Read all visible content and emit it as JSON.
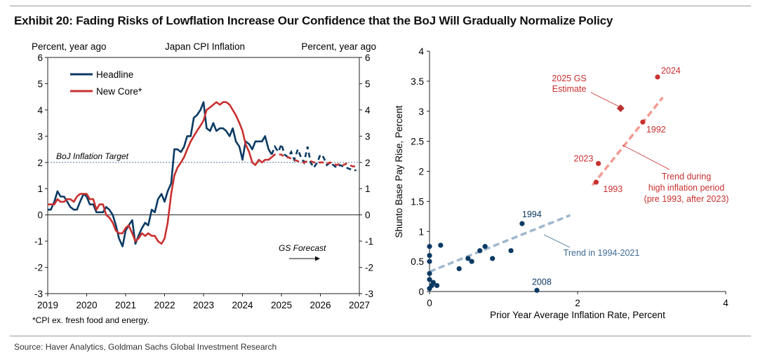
{
  "exhibit": {
    "title": "Exhibit 20: Fading Risks of Lowflation Increase Our Confidence that the BoJ Will Gradually Normalize Policy",
    "source": "Source: Haver Analytics, Goldman Sachs Global Investment Research"
  },
  "colors": {
    "headline": "#0b3a63",
    "core": "#c8302f",
    "trend_early": "#9fb7cc",
    "trend_high": "#f29a93",
    "scatter_blue": "#0b3a63",
    "scatter_red": "#c8302f"
  },
  "chart_data": [
    {
      "type": "line",
      "title": "Japan CPI Inflation",
      "ylabel_left": "Percent, year ago",
      "ylabel_right": "Percent, year ago",
      "ylim": [
        -3,
        6
      ],
      "xlim": [
        2019,
        2027
      ],
      "x_ticks": [
        "2019",
        "2020",
        "2021",
        "2022",
        "2023",
        "2024",
        "2025",
        "2026",
        "2027"
      ],
      "y_ticks": [
        "-3",
        "-2",
        "-1",
        "0",
        "1",
        "2",
        "3",
        "4",
        "5",
        "6"
      ],
      "footnote": "*CPI ex. fresh food and energy.",
      "reference_line": {
        "label": "BoJ Inflation Target",
        "y": 2
      },
      "forecast_note": {
        "label": "GS Forecast",
        "start": 2024.75
      },
      "legend": [
        "Headline",
        "New Core*"
      ],
      "series": [
        {
          "name": "Headline",
          "points": [
            [
              2019.0,
              0.2
            ],
            [
              2019.08,
              0.2
            ],
            [
              2019.17,
              0.5
            ],
            [
              2019.25,
              0.9
            ],
            [
              2019.33,
              0.7
            ],
            [
              2019.42,
              0.7
            ],
            [
              2019.5,
              0.5
            ],
            [
              2019.58,
              0.3
            ],
            [
              2019.67,
              0.2
            ],
            [
              2019.75,
              0.2
            ],
            [
              2019.83,
              0.5
            ],
            [
              2019.92,
              0.8
            ],
            [
              2020.0,
              0.7
            ],
            [
              2020.08,
              0.4
            ],
            [
              2020.17,
              0.4
            ],
            [
              2020.25,
              0.1
            ],
            [
              2020.33,
              0.1
            ],
            [
              2020.42,
              0.1
            ],
            [
              2020.5,
              0.3
            ],
            [
              2020.58,
              0.2
            ],
            [
              2020.67,
              0.0
            ],
            [
              2020.75,
              -0.4
            ],
            [
              2020.83,
              -0.9
            ],
            [
              2020.92,
              -1.2
            ],
            [
              2021.0,
              -0.6
            ],
            [
              2021.08,
              -0.4
            ],
            [
              2021.17,
              -0.2
            ],
            [
              2021.25,
              -1.1
            ],
            [
              2021.33,
              -0.8
            ],
            [
              2021.42,
              -0.5
            ],
            [
              2021.5,
              -0.3
            ],
            [
              2021.58,
              -0.4
            ],
            [
              2021.67,
              0.2
            ],
            [
              2021.75,
              0.1
            ],
            [
              2021.83,
              0.6
            ],
            [
              2021.92,
              0.8
            ],
            [
              2022.0,
              0.5
            ],
            [
              2022.08,
              0.9
            ],
            [
              2022.17,
              1.2
            ],
            [
              2022.25,
              2.5
            ],
            [
              2022.33,
              2.5
            ],
            [
              2022.42,
              2.4
            ],
            [
              2022.5,
              2.6
            ],
            [
              2022.58,
              3.0
            ],
            [
              2022.67,
              3.0
            ],
            [
              2022.75,
              3.7
            ],
            [
              2022.83,
              3.8
            ],
            [
              2022.92,
              4.0
            ],
            [
              2023.0,
              4.3
            ],
            [
              2023.08,
              3.3
            ],
            [
              2023.17,
              3.2
            ],
            [
              2023.25,
              3.5
            ],
            [
              2023.33,
              3.2
            ],
            [
              2023.42,
              3.3
            ],
            [
              2023.5,
              3.3
            ],
            [
              2023.58,
              3.2
            ],
            [
              2023.67,
              3.0
            ],
            [
              2023.75,
              3.3
            ],
            [
              2023.83,
              2.8
            ],
            [
              2023.92,
              2.6
            ],
            [
              2024.0,
              2.1
            ],
            [
              2024.08,
              2.8
            ],
            [
              2024.17,
              2.7
            ],
            [
              2024.25,
              2.5
            ],
            [
              2024.33,
              2.8
            ],
            [
              2024.42,
              2.8
            ],
            [
              2024.5,
              2.8
            ],
            [
              2024.58,
              3.0
            ],
            [
              2024.67,
              2.5
            ],
            [
              2024.75,
              2.3
            ],
            [
              2024.83,
              2.6
            ],
            [
              2024.92,
              2.4
            ],
            [
              2025.0,
              2.7
            ],
            [
              2025.08,
              2.3
            ],
            [
              2025.17,
              2.2
            ],
            [
              2025.25,
              2.4
            ],
            [
              2025.33,
              2.1
            ],
            [
              2025.42,
              2.5
            ],
            [
              2025.5,
              2.2
            ],
            [
              2025.58,
              2.0
            ],
            [
              2025.67,
              2.6
            ],
            [
              2025.75,
              2.0
            ],
            [
              2025.83,
              1.8
            ],
            [
              2025.92,
              2.0
            ],
            [
              2026.0,
              2.3
            ],
            [
              2026.08,
              2.2
            ],
            [
              2026.17,
              1.9
            ],
            [
              2026.25,
              2.0
            ],
            [
              2026.33,
              1.9
            ],
            [
              2026.42,
              1.8
            ],
            [
              2026.5,
              1.9
            ],
            [
              2026.58,
              1.85
            ],
            [
              2026.67,
              1.8
            ],
            [
              2026.75,
              1.75
            ],
            [
              2026.83,
              1.7
            ],
            [
              2026.92,
              1.7
            ]
          ]
        },
        {
          "name": "New Core*",
          "points": [
            [
              2019.0,
              0.4
            ],
            [
              2019.08,
              0.4
            ],
            [
              2019.17,
              0.4
            ],
            [
              2019.25,
              0.6
            ],
            [
              2019.33,
              0.5
            ],
            [
              2019.42,
              0.5
            ],
            [
              2019.5,
              0.6
            ],
            [
              2019.58,
              0.6
            ],
            [
              2019.67,
              0.5
            ],
            [
              2019.75,
              0.7
            ],
            [
              2019.83,
              0.8
            ],
            [
              2019.92,
              0.8
            ],
            [
              2020.0,
              0.8
            ],
            [
              2020.08,
              0.6
            ],
            [
              2020.17,
              0.6
            ],
            [
              2020.25,
              0.2
            ],
            [
              2020.33,
              0.4
            ],
            [
              2020.42,
              0.4
            ],
            [
              2020.5,
              0.0
            ],
            [
              2020.58,
              -0.1
            ],
            [
              2020.67,
              -0.3
            ],
            [
              2020.75,
              -0.6
            ],
            [
              2020.83,
              -0.7
            ],
            [
              2020.92,
              -0.7
            ],
            [
              2021.0,
              -0.5
            ],
            [
              2021.08,
              -0.4
            ],
            [
              2021.17,
              -0.7
            ],
            [
              2021.25,
              -1.0
            ],
            [
              2021.33,
              -0.9
            ],
            [
              2021.42,
              -0.7
            ],
            [
              2021.5,
              -0.8
            ],
            [
              2021.58,
              -0.7
            ],
            [
              2021.67,
              -0.8
            ],
            [
              2021.75,
              -0.8
            ],
            [
              2021.83,
              -1.0
            ],
            [
              2021.92,
              -1.1
            ],
            [
              2022.0,
              -0.9
            ],
            [
              2022.08,
              -0.3
            ],
            [
              2022.17,
              0.8
            ],
            [
              2022.25,
              1.5
            ],
            [
              2022.33,
              1.8
            ],
            [
              2022.42,
              2.0
            ],
            [
              2022.5,
              2.2
            ],
            [
              2022.58,
              2.5
            ],
            [
              2022.67,
              2.8
            ],
            [
              2022.75,
              3.0
            ],
            [
              2022.83,
              3.2
            ],
            [
              2022.92,
              3.4
            ],
            [
              2023.0,
              3.6
            ],
            [
              2023.08,
              4.0
            ],
            [
              2023.17,
              4.1
            ],
            [
              2023.25,
              4.2
            ],
            [
              2023.33,
              4.3
            ],
            [
              2023.42,
              4.2
            ],
            [
              2023.5,
              4.3
            ],
            [
              2023.58,
              4.3
            ],
            [
              2023.67,
              4.2
            ],
            [
              2023.75,
              4.0
            ],
            [
              2023.83,
              3.8
            ],
            [
              2023.92,
              3.5
            ],
            [
              2024.0,
              3.2
            ],
            [
              2024.08,
              2.7
            ],
            [
              2024.17,
              2.4
            ],
            [
              2024.25,
              2.0
            ],
            [
              2024.33,
              1.9
            ],
            [
              2024.42,
              2.1
            ],
            [
              2024.5,
              2.0
            ],
            [
              2024.58,
              2.1
            ],
            [
              2024.67,
              2.1
            ],
            [
              2024.75,
              2.2
            ],
            [
              2024.83,
              2.3
            ],
            [
              2024.92,
              2.3
            ],
            [
              2025.0,
              2.3
            ],
            [
              2025.08,
              2.2
            ],
            [
              2025.17,
              2.2
            ],
            [
              2025.25,
              2.15
            ],
            [
              2025.33,
              2.1
            ],
            [
              2025.42,
              2.05
            ],
            [
              2025.5,
              2.0
            ],
            [
              2025.58,
              2.0
            ],
            [
              2025.67,
              2.05
            ],
            [
              2025.75,
              2.05
            ],
            [
              2025.83,
              2.0
            ],
            [
              2025.92,
              2.0
            ],
            [
              2026.0,
              2.0
            ],
            [
              2026.08,
              2.0
            ],
            [
              2026.17,
              1.95
            ],
            [
              2026.25,
              2.0
            ],
            [
              2026.33,
              1.95
            ],
            [
              2026.42,
              1.9
            ],
            [
              2026.5,
              1.95
            ],
            [
              2026.58,
              1.9
            ],
            [
              2026.67,
              1.95
            ],
            [
              2026.75,
              1.9
            ],
            [
              2026.83,
              1.85
            ],
            [
              2026.92,
              1.85
            ]
          ]
        }
      ]
    },
    {
      "type": "scatter",
      "xlabel": "Prior Year Average Inflation Rate, Percent",
      "ylabel": "Shunto Base Pay Rise, Percent",
      "xlim": [
        0,
        4
      ],
      "ylim": [
        0,
        4
      ],
      "x_ticks": [
        "0",
        "2",
        "4"
      ],
      "y_ticks": [
        "0",
        "0.5",
        "1",
        "1.5",
        "2",
        "2.5",
        "3",
        "3.5",
        "4"
      ],
      "series": [
        {
          "name": "1994-2021",
          "points": [
            [
              0.0,
              0.05
            ],
            [
              0.0,
              0.2
            ],
            [
              0.0,
              0.3
            ],
            [
              0.0,
              0.5
            ],
            [
              0.0,
              0.6
            ],
            [
              0.0,
              0.75
            ],
            [
              0.03,
              0.1
            ],
            [
              0.05,
              0.15
            ],
            [
              0.1,
              0.1
            ],
            [
              0.15,
              0.77
            ],
            [
              0.4,
              0.38
            ],
            [
              0.52,
              0.55
            ],
            [
              0.57,
              0.5
            ],
            [
              0.68,
              0.68
            ],
            [
              0.75,
              0.75
            ],
            [
              0.85,
              0.55
            ],
            [
              1.1,
              0.68
            ],
            [
              1.25,
              1.13
            ],
            [
              1.45,
              0.02
            ]
          ]
        },
        {
          "name": "high inflation period",
          "points": [
            [
              2.25,
              1.82
            ],
            [
              2.28,
              2.13
            ],
            [
              2.58,
              3.05
            ],
            [
              2.88,
              2.82
            ],
            [
              3.08,
              3.57
            ]
          ]
        }
      ],
      "labels": [
        {
          "text": "1994",
          "x": 1.25,
          "y": 1.13
        },
        {
          "text": "2008",
          "x": 1.45,
          "y": 0.02
        },
        {
          "text": "1993",
          "x": 2.25,
          "y": 1.82
        },
        {
          "text": "2023",
          "x": 2.28,
          "y": 2.13
        },
        {
          "text": "1992",
          "x": 2.88,
          "y": 2.82
        },
        {
          "text": "2024",
          "x": 3.08,
          "y": 3.57
        }
      ],
      "trend_lines": [
        {
          "label": "Trend in 1994-2021",
          "from": [
            0.0,
            0.33
          ],
          "to": [
            1.9,
            1.27
          ]
        },
        {
          "label": "Trend during high inflation period (pre 1993, after 2023)",
          "from": [
            2.2,
            1.77
          ],
          "to": [
            3.15,
            3.23
          ]
        }
      ],
      "estimate": {
        "label": "2025 GS Estimate",
        "x": 2.58,
        "y": 3.05
      },
      "annotations": {
        "estimate_line1": "2025 GS",
        "estimate_line2": "Estimate",
        "trend_high_line1": "Trend during",
        "trend_high_line2": "high inflation period",
        "trend_high_line3": "(pre 1993, after 2023)",
        "trend_early": "Trend in 1994-2021"
      }
    }
  ]
}
